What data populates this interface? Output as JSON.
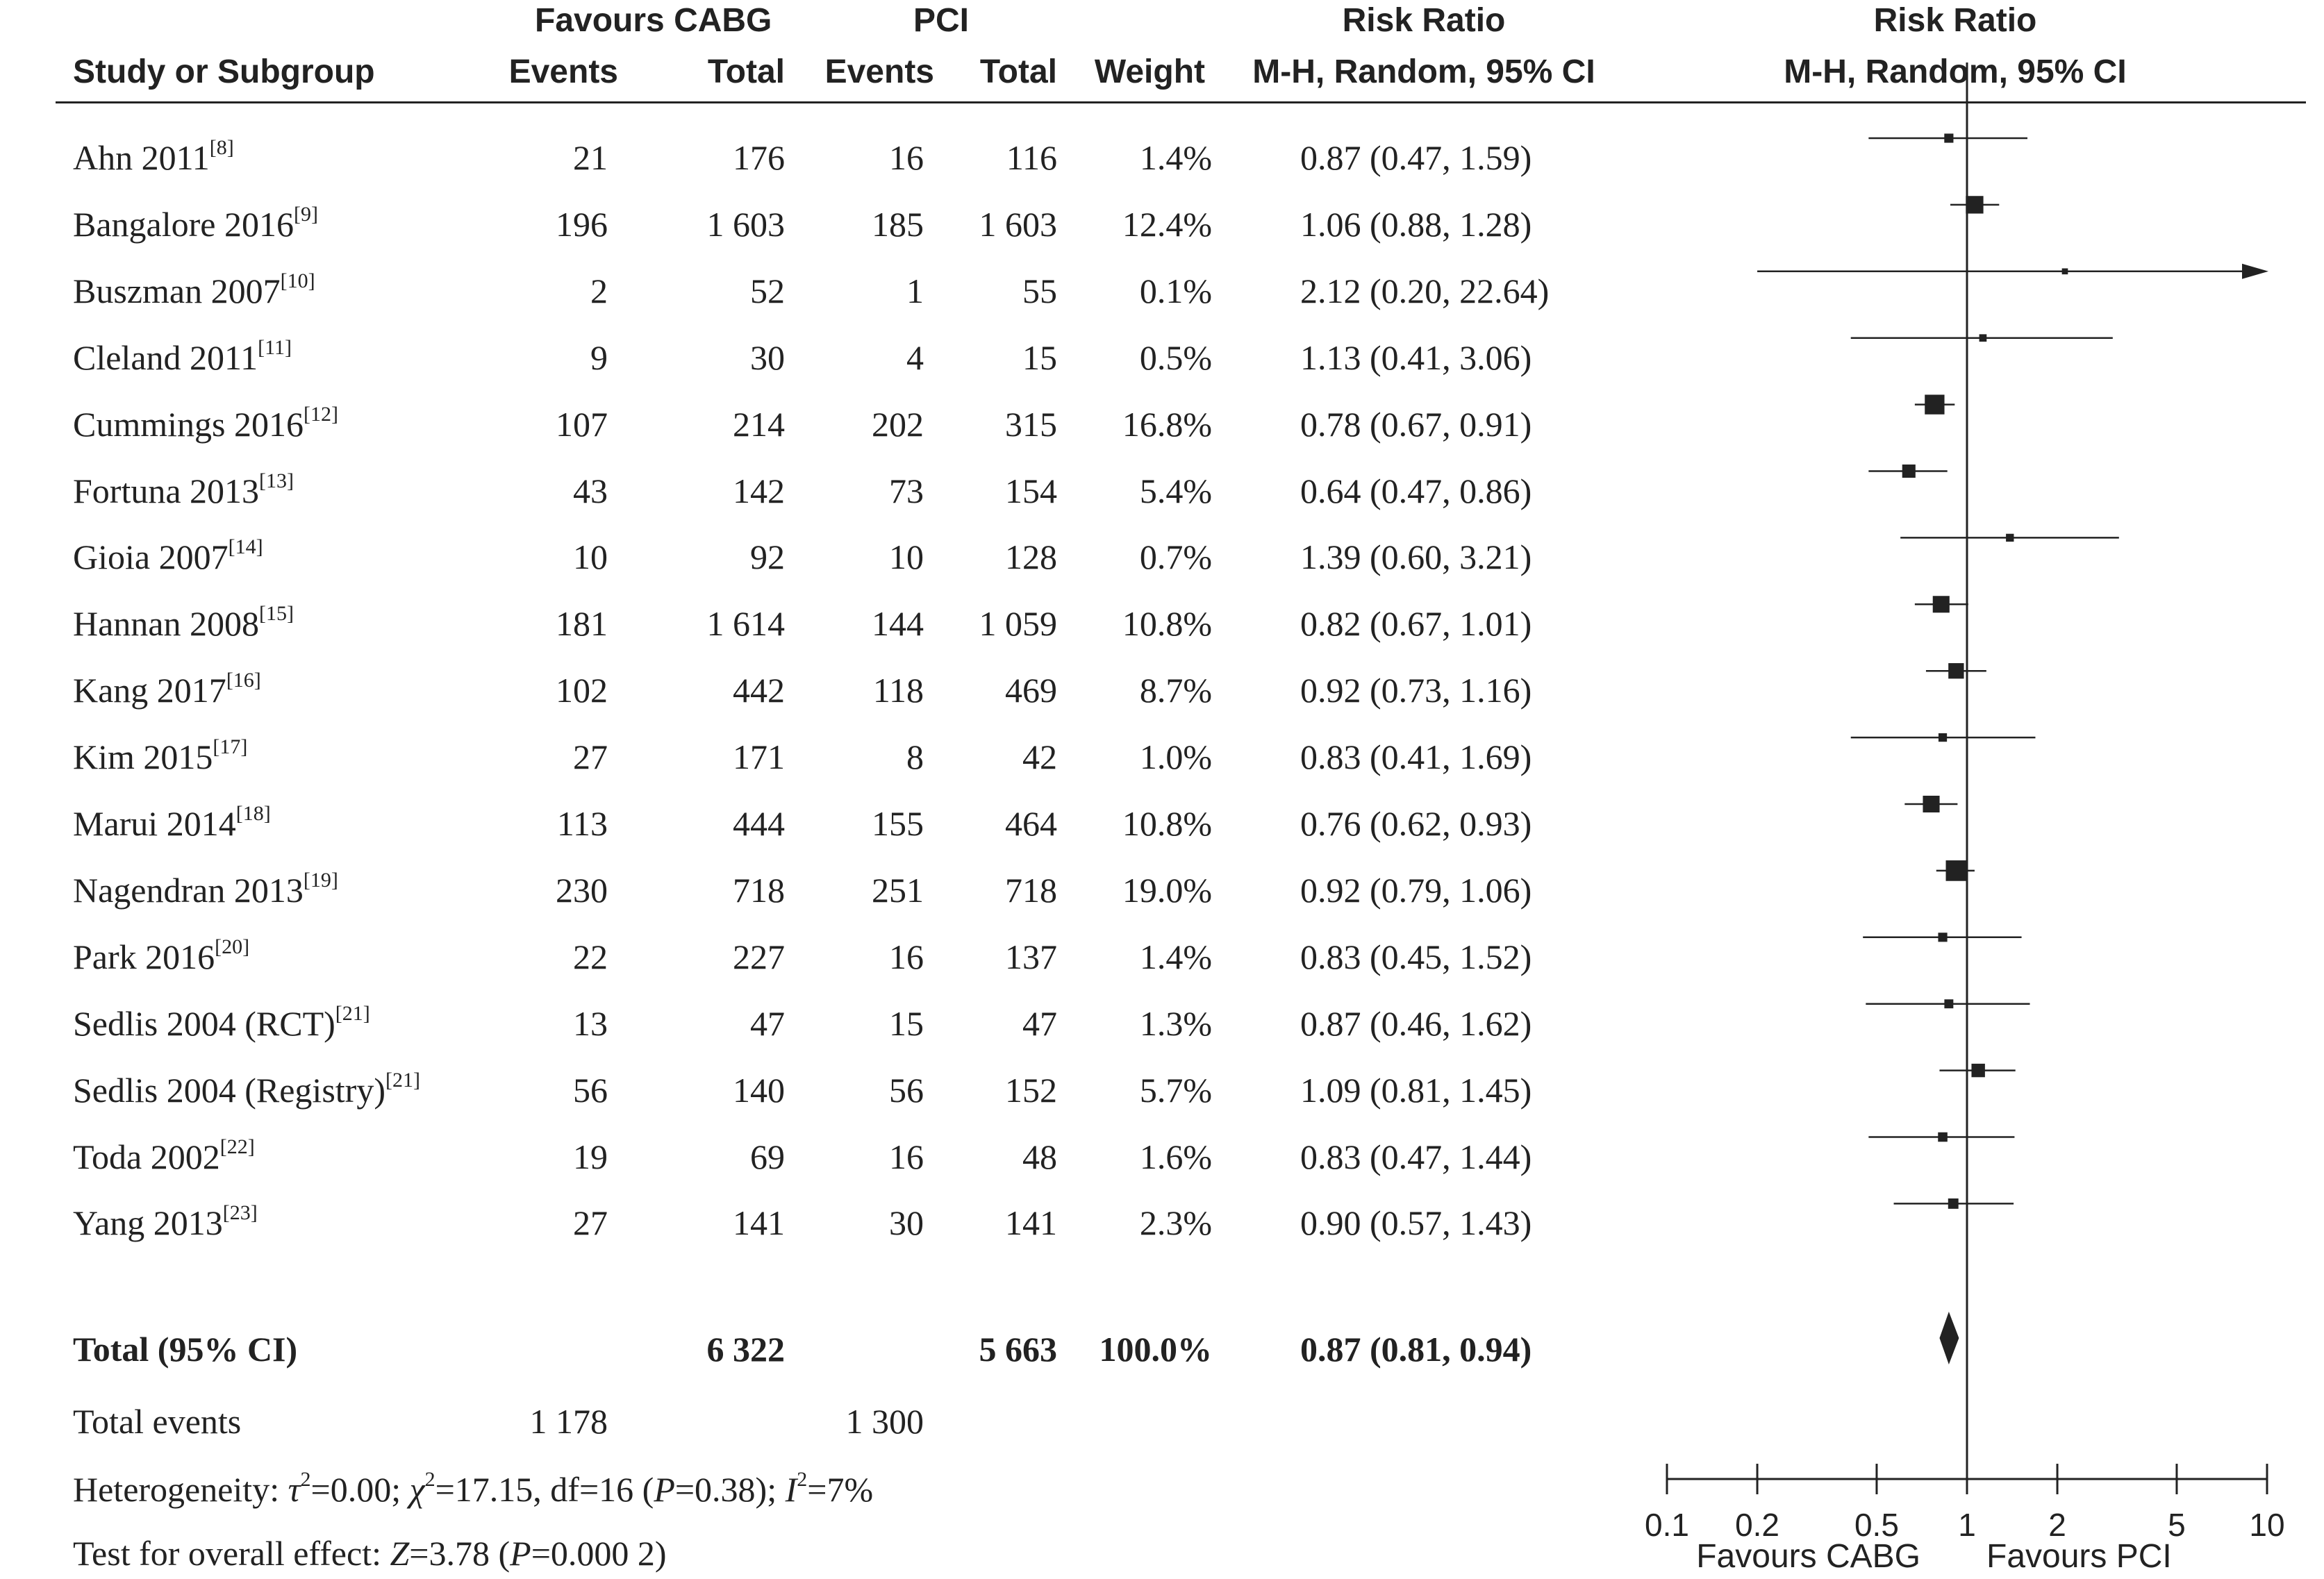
{
  "headers": {
    "group1": "Favours CABG",
    "group2": "PCI",
    "rr_top": "Risk Ratio",
    "rr_plot_top": "Risk Ratio",
    "study": "Study or Subgroup",
    "events1": "Events",
    "total1": "Total",
    "events2": "Events",
    "total2": "Total",
    "weight": "Weight",
    "rr_method": "M-H, Random, 95% CI",
    "rr_plot_method": "M-H, Random, 95% CI"
  },
  "rows": [
    {
      "name": "Ahn 2011",
      "ref": "[8]",
      "e1": "21",
      "t1": "176",
      "e2": "16",
      "t2": "116",
      "weight": "1.4%",
      "rr": "0.87 (0.47, 1.59)"
    },
    {
      "name": "Bangalore 2016",
      "ref": "[9]",
      "e1": "196",
      "t1": "1 603",
      "e2": "185",
      "t2": "1 603",
      "weight": "12.4%",
      "rr": "1.06 (0.88, 1.28)"
    },
    {
      "name": "Buszman 2007",
      "ref": "[10]",
      "e1": "2",
      "t1": "52",
      "e2": "1",
      "t2": "55",
      "weight": "0.1%",
      "rr": "2.12 (0.20, 22.64)"
    },
    {
      "name": "Cleland 2011",
      "ref": "[11]",
      "e1": "9",
      "t1": "30",
      "e2": "4",
      "t2": "15",
      "weight": "0.5%",
      "rr": "1.13 (0.41, 3.06)"
    },
    {
      "name": "Cummings 2016",
      "ref": "[12]",
      "e1": "107",
      "t1": "214",
      "e2": "202",
      "t2": "315",
      "weight": "16.8%",
      "rr": "0.78 (0.67, 0.91)"
    },
    {
      "name": "Fortuna 2013",
      "ref": "[13]",
      "e1": "43",
      "t1": "142",
      "e2": "73",
      "t2": "154",
      "weight": "5.4%",
      "rr": "0.64 (0.47, 0.86)"
    },
    {
      "name": "Gioia 2007",
      "ref": "[14]",
      "e1": "10",
      "t1": "92",
      "e2": "10",
      "t2": "128",
      "weight": "0.7%",
      "rr": "1.39 (0.60, 3.21)"
    },
    {
      "name": "Hannan 2008",
      "ref": "[15]",
      "e1": "181",
      "t1": "1 614",
      "e2": "144",
      "t2": "1 059",
      "weight": "10.8%",
      "rr": "0.82 (0.67, 1.01)"
    },
    {
      "name": "Kang 2017",
      "ref": "[16]",
      "e1": "102",
      "t1": "442",
      "e2": "118",
      "t2": "469",
      "weight": "8.7%",
      "rr": "0.92 (0.73, 1.16)"
    },
    {
      "name": "Kim 2015",
      "ref": "[17]",
      "e1": "27",
      "t1": "171",
      "e2": "8",
      "t2": "42",
      "weight": "1.0%",
      "rr": "0.83 (0.41, 1.69)"
    },
    {
      "name": "Marui 2014",
      "ref": "[18]",
      "e1": "113",
      "t1": "444",
      "e2": "155",
      "t2": "464",
      "weight": "10.8%",
      "rr": "0.76 (0.62, 0.93)"
    },
    {
      "name": "Nagendran 2013",
      "ref": "[19]",
      "e1": "230",
      "t1": "718",
      "e2": "251",
      "t2": "718",
      "weight": "19.0%",
      "rr": "0.92 (0.79, 1.06)"
    },
    {
      "name": "Park 2016",
      "ref": "[20]",
      "e1": "22",
      "t1": "227",
      "e2": "16",
      "t2": "137",
      "weight": "1.4%",
      "rr": "0.83 (0.45, 1.52)"
    },
    {
      "name": "Sedlis 2004 (RCT)",
      "ref": "[21]",
      "e1": "13",
      "t1": "47",
      "e2": "15",
      "t2": "47",
      "weight": "1.3%",
      "rr": "0.87 (0.46, 1.62)"
    },
    {
      "name": "Sedlis 2004 (Registry)",
      "ref": "[21]",
      "e1": "56",
      "t1": "140",
      "e2": "56",
      "t2": "152",
      "weight": "5.7%",
      "rr": "1.09 (0.81, 1.45)"
    },
    {
      "name": "Toda 2002",
      "ref": "[22]",
      "e1": "19",
      "t1": "69",
      "e2": "16",
      "t2": "48",
      "weight": "1.6%",
      "rr": "0.83 (0.47, 1.44)"
    },
    {
      "name": "Yang 2013",
      "ref": "[23]",
      "e1": "27",
      "t1": "141",
      "e2": "30",
      "t2": "141",
      "weight": "2.3%",
      "rr": "0.90 (0.57, 1.43)"
    }
  ],
  "total": {
    "label": "Total (95% CI)",
    "t1": "6 322",
    "t2": "5 663",
    "weight": "100.0%",
    "rr": "0.87 (0.81, 0.94)"
  },
  "total_events": {
    "label": "Total events",
    "e1": "1 178",
    "e2": "1 300"
  },
  "heterogeneity": {
    "prefix": "Heterogeneity: ",
    "tau_sym": "τ",
    "tau_val": "=0.00; ",
    "chi_sym": "χ",
    "chi_val": "=17.15, df=16 (",
    "p_sym": "P",
    "p_val": "=0.38); ",
    "i_sym": "I",
    "i_val": "=7%"
  },
  "overall_effect": {
    "prefix": "Test for overall effect: ",
    "z_sym": "Z",
    "z_val": "=3.78 (",
    "p_sym": "P",
    "p_val": "=0.000 2)"
  },
  "chart_data": {
    "type": "forest",
    "title": "Risk Ratio",
    "subtitle": "M-H, Random, 95% CI",
    "x_scale": "log",
    "xlim": [
      0.1,
      10
    ],
    "x_ticks": [
      0.1,
      0.2,
      0.5,
      1,
      2,
      5,
      10
    ],
    "x_tick_labels": [
      "0.1",
      "0.2",
      "0.5",
      "1",
      "2",
      "5",
      "10"
    ],
    "favours_left": "Favours CABG",
    "favours_right": "Favours PCI",
    "reference_line": 1,
    "studies": [
      {
        "rr": 0.87,
        "lo": 0.47,
        "hi": 1.59,
        "weight": 1.4
      },
      {
        "rr": 1.06,
        "lo": 0.88,
        "hi": 1.28,
        "weight": 12.4
      },
      {
        "rr": 2.12,
        "lo": 0.2,
        "hi": 22.64,
        "weight": 0.1
      },
      {
        "rr": 1.13,
        "lo": 0.41,
        "hi": 3.06,
        "weight": 0.5
      },
      {
        "rr": 0.78,
        "lo": 0.67,
        "hi": 0.91,
        "weight": 16.8
      },
      {
        "rr": 0.64,
        "lo": 0.47,
        "hi": 0.86,
        "weight": 5.4
      },
      {
        "rr": 1.39,
        "lo": 0.6,
        "hi": 3.21,
        "weight": 0.7
      },
      {
        "rr": 0.82,
        "lo": 0.67,
        "hi": 1.01,
        "weight": 10.8
      },
      {
        "rr": 0.92,
        "lo": 0.73,
        "hi": 1.16,
        "weight": 8.7
      },
      {
        "rr": 0.83,
        "lo": 0.41,
        "hi": 1.69,
        "weight": 1.0
      },
      {
        "rr": 0.76,
        "lo": 0.62,
        "hi": 0.93,
        "weight": 10.8
      },
      {
        "rr": 0.92,
        "lo": 0.79,
        "hi": 1.06,
        "weight": 19.0
      },
      {
        "rr": 0.83,
        "lo": 0.45,
        "hi": 1.52,
        "weight": 1.4
      },
      {
        "rr": 0.87,
        "lo": 0.46,
        "hi": 1.62,
        "weight": 1.3
      },
      {
        "rr": 1.09,
        "lo": 0.81,
        "hi": 1.45,
        "weight": 5.7
      },
      {
        "rr": 0.83,
        "lo": 0.47,
        "hi": 1.44,
        "weight": 1.6
      },
      {
        "rr": 0.9,
        "lo": 0.57,
        "hi": 1.43,
        "weight": 2.3
      }
    ],
    "pooled": {
      "rr": 0.87,
      "lo": 0.81,
      "hi": 0.94
    }
  }
}
